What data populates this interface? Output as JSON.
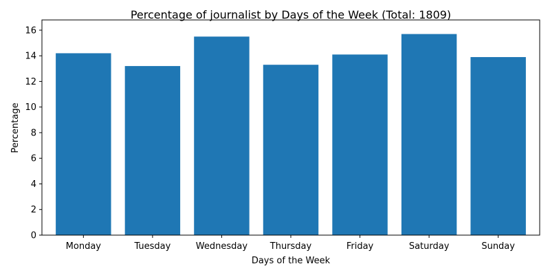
{
  "chart_data": {
    "type": "bar",
    "title": "Percentage of journalist by Days of the Week (Total: 1809)",
    "xlabel": "Days of the Week",
    "ylabel": "Percentage",
    "categories": [
      "Monday",
      "Tuesday",
      "Wednesday",
      "Thursday",
      "Friday",
      "Saturday",
      "Sunday"
    ],
    "values": [
      14.2,
      13.2,
      15.5,
      13.3,
      14.1,
      15.7,
      13.9
    ],
    "ylim": [
      0,
      16.8
    ],
    "yticks": [
      0,
      2,
      4,
      6,
      8,
      10,
      12,
      14,
      16
    ],
    "ytick_labels": [
      "0",
      "2",
      "4",
      "6",
      "8",
      "10",
      "12",
      "14",
      "16"
    ],
    "bar_color": "#1f77b4",
    "grid": false,
    "legend": "none"
  }
}
